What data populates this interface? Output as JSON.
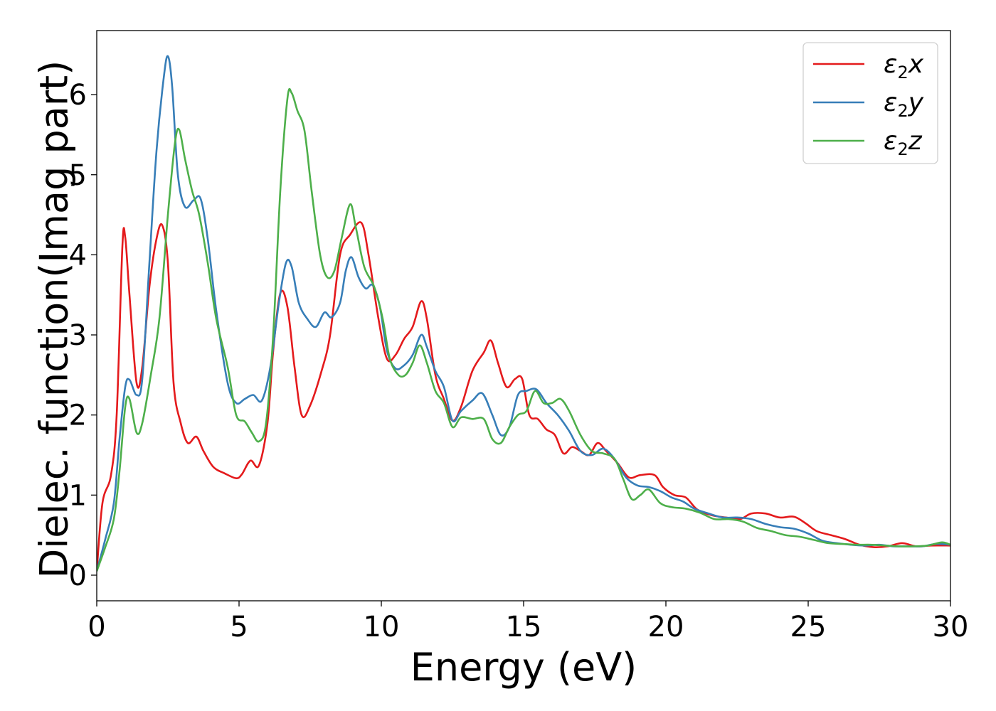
{
  "chart_data": {
    "type": "line",
    "title": "",
    "xlabel": "Energy (eV)",
    "ylabel": "Dielec. function(Imag part)",
    "xlim": [
      0,
      30
    ],
    "ylim": [
      -0.32,
      6.8
    ],
    "xticks": [
      0,
      5,
      10,
      15,
      20,
      25,
      30
    ],
    "xtick_labels": [
      "0",
      "5",
      "10",
      "15",
      "20",
      "25",
      "30"
    ],
    "yticks": [
      0,
      1,
      2,
      3,
      4,
      5,
      6
    ],
    "ytick_labels": [
      "0",
      "1",
      "2",
      "3",
      "4",
      "5",
      "6"
    ],
    "grid": false,
    "legend_position": "top-right",
    "series": [
      {
        "name": "ε₂x",
        "legend_base": "ε",
        "legend_sub": "2",
        "legend_suffix": "x",
        "color": "#e41a1c",
        "points": [
          [
            0,
            0.05
          ],
          [
            0.2,
            0.9
          ],
          [
            0.5,
            1.25
          ],
          [
            0.7,
            2.0
          ],
          [
            0.9,
            4.1
          ],
          [
            1.0,
            4.22
          ],
          [
            1.15,
            3.5
          ],
          [
            1.4,
            2.4
          ],
          [
            1.6,
            2.6
          ],
          [
            1.85,
            3.6
          ],
          [
            2.1,
            4.2
          ],
          [
            2.3,
            4.37
          ],
          [
            2.5,
            3.9
          ],
          [
            2.7,
            2.4
          ],
          [
            2.95,
            1.9
          ],
          [
            3.2,
            1.65
          ],
          [
            3.5,
            1.73
          ],
          [
            3.75,
            1.55
          ],
          [
            4.1,
            1.35
          ],
          [
            4.5,
            1.27
          ],
          [
            4.9,
            1.21
          ],
          [
            5.1,
            1.26
          ],
          [
            5.4,
            1.43
          ],
          [
            5.7,
            1.37
          ],
          [
            6.0,
            1.9
          ],
          [
            6.2,
            2.8
          ],
          [
            6.45,
            3.52
          ],
          [
            6.7,
            3.35
          ],
          [
            6.95,
            2.6
          ],
          [
            7.2,
            2.0
          ],
          [
            7.5,
            2.12
          ],
          [
            7.9,
            2.55
          ],
          [
            8.2,
            3.0
          ],
          [
            8.55,
            4.0
          ],
          [
            8.9,
            4.25
          ],
          [
            9.3,
            4.4
          ],
          [
            9.55,
            4.0
          ],
          [
            9.9,
            3.2
          ],
          [
            10.2,
            2.7
          ],
          [
            10.5,
            2.75
          ],
          [
            10.8,
            2.95
          ],
          [
            11.1,
            3.1
          ],
          [
            11.4,
            3.42
          ],
          [
            11.6,
            3.2
          ],
          [
            11.9,
            2.5
          ],
          [
            12.2,
            2.2
          ],
          [
            12.5,
            1.93
          ],
          [
            12.8,
            2.1
          ],
          [
            13.2,
            2.55
          ],
          [
            13.6,
            2.78
          ],
          [
            13.85,
            2.93
          ],
          [
            14.1,
            2.65
          ],
          [
            14.4,
            2.35
          ],
          [
            14.7,
            2.45
          ],
          [
            14.95,
            2.45
          ],
          [
            15.2,
            2.0
          ],
          [
            15.5,
            1.95
          ],
          [
            15.8,
            1.82
          ],
          [
            16.1,
            1.75
          ],
          [
            16.4,
            1.52
          ],
          [
            16.7,
            1.6
          ],
          [
            17.0,
            1.55
          ],
          [
            17.3,
            1.5
          ],
          [
            17.6,
            1.65
          ],
          [
            17.9,
            1.55
          ],
          [
            18.3,
            1.4
          ],
          [
            18.7,
            1.22
          ],
          [
            19.1,
            1.25
          ],
          [
            19.6,
            1.25
          ],
          [
            19.9,
            1.1
          ],
          [
            20.3,
            1.0
          ],
          [
            20.7,
            0.97
          ],
          [
            21.1,
            0.82
          ],
          [
            21.6,
            0.75
          ],
          [
            22.1,
            0.72
          ],
          [
            22.6,
            0.7
          ],
          [
            23.0,
            0.77
          ],
          [
            23.5,
            0.77
          ],
          [
            24.0,
            0.72
          ],
          [
            24.5,
            0.73
          ],
          [
            24.9,
            0.65
          ],
          [
            25.3,
            0.55
          ],
          [
            25.8,
            0.5
          ],
          [
            26.3,
            0.45
          ],
          [
            26.8,
            0.38
          ],
          [
            27.3,
            0.35
          ],
          [
            27.8,
            0.36
          ],
          [
            28.3,
            0.4
          ],
          [
            28.8,
            0.36
          ],
          [
            29.3,
            0.37
          ],
          [
            30,
            0.37
          ]
        ]
      },
      {
        "name": "ε₂y",
        "legend_base": "ε",
        "legend_sub": "2",
        "legend_suffix": "y",
        "color": "#377eb8",
        "points": [
          [
            0,
            0.05
          ],
          [
            0.3,
            0.45
          ],
          [
            0.6,
            0.9
          ],
          [
            0.8,
            1.7
          ],
          [
            1.0,
            2.35
          ],
          [
            1.15,
            2.44
          ],
          [
            1.4,
            2.25
          ],
          [
            1.6,
            2.45
          ],
          [
            1.85,
            3.9
          ],
          [
            2.1,
            5.3
          ],
          [
            2.35,
            6.2
          ],
          [
            2.5,
            6.48
          ],
          [
            2.65,
            6.1
          ],
          [
            2.85,
            5.0
          ],
          [
            3.1,
            4.6
          ],
          [
            3.4,
            4.68
          ],
          [
            3.65,
            4.7
          ],
          [
            3.9,
            4.2
          ],
          [
            4.2,
            3.3
          ],
          [
            4.6,
            2.4
          ],
          [
            4.9,
            2.15
          ],
          [
            5.2,
            2.2
          ],
          [
            5.5,
            2.25
          ],
          [
            5.8,
            2.18
          ],
          [
            6.1,
            2.6
          ],
          [
            6.4,
            3.4
          ],
          [
            6.65,
            3.9
          ],
          [
            6.85,
            3.85
          ],
          [
            7.1,
            3.4
          ],
          [
            7.4,
            3.2
          ],
          [
            7.7,
            3.1
          ],
          [
            8.0,
            3.28
          ],
          [
            8.25,
            3.22
          ],
          [
            8.55,
            3.4
          ],
          [
            8.75,
            3.8
          ],
          [
            8.95,
            3.97
          ],
          [
            9.2,
            3.72
          ],
          [
            9.45,
            3.58
          ],
          [
            9.7,
            3.62
          ],
          [
            9.95,
            3.35
          ],
          [
            10.2,
            2.8
          ],
          [
            10.5,
            2.58
          ],
          [
            10.8,
            2.62
          ],
          [
            11.1,
            2.75
          ],
          [
            11.4,
            3.0
          ],
          [
            11.6,
            2.85
          ],
          [
            11.9,
            2.55
          ],
          [
            12.2,
            2.35
          ],
          [
            12.5,
            1.93
          ],
          [
            12.8,
            2.05
          ],
          [
            13.2,
            2.18
          ],
          [
            13.55,
            2.27
          ],
          [
            13.9,
            2.0
          ],
          [
            14.2,
            1.75
          ],
          [
            14.5,
            1.85
          ],
          [
            14.8,
            2.25
          ],
          [
            15.1,
            2.3
          ],
          [
            15.45,
            2.32
          ],
          [
            15.8,
            2.15
          ],
          [
            16.2,
            2.0
          ],
          [
            16.6,
            1.8
          ],
          [
            17.0,
            1.55
          ],
          [
            17.4,
            1.5
          ],
          [
            17.8,
            1.58
          ],
          [
            18.2,
            1.45
          ],
          [
            18.6,
            1.22
          ],
          [
            19.0,
            1.12
          ],
          [
            19.4,
            1.1
          ],
          [
            19.8,
            1.05
          ],
          [
            20.2,
            0.97
          ],
          [
            20.6,
            0.92
          ],
          [
            21.0,
            0.83
          ],
          [
            21.5,
            0.77
          ],
          [
            22.0,
            0.72
          ],
          [
            22.5,
            0.72
          ],
          [
            23.0,
            0.7
          ],
          [
            23.5,
            0.64
          ],
          [
            24.0,
            0.6
          ],
          [
            24.5,
            0.58
          ],
          [
            25.0,
            0.52
          ],
          [
            25.5,
            0.43
          ],
          [
            26.0,
            0.4
          ],
          [
            26.5,
            0.38
          ],
          [
            27.0,
            0.37
          ],
          [
            27.5,
            0.38
          ],
          [
            28.0,
            0.36
          ],
          [
            28.5,
            0.36
          ],
          [
            29.0,
            0.36
          ],
          [
            29.5,
            0.39
          ],
          [
            30,
            0.38
          ]
        ]
      },
      {
        "name": "ε₂z",
        "legend_base": "ε",
        "legend_sub": "2",
        "legend_suffix": "z",
        "color": "#4daf4a",
        "points": [
          [
            0,
            0.05
          ],
          [
            0.3,
            0.35
          ],
          [
            0.6,
            0.7
          ],
          [
            0.8,
            1.3
          ],
          [
            1.0,
            2.1
          ],
          [
            1.15,
            2.2
          ],
          [
            1.4,
            1.78
          ],
          [
            1.6,
            1.9
          ],
          [
            1.9,
            2.5
          ],
          [
            2.2,
            3.2
          ],
          [
            2.5,
            4.5
          ],
          [
            2.75,
            5.4
          ],
          [
            2.9,
            5.56
          ],
          [
            3.1,
            5.2
          ],
          [
            3.35,
            4.8
          ],
          [
            3.6,
            4.5
          ],
          [
            3.9,
            3.9
          ],
          [
            4.2,
            3.2
          ],
          [
            4.6,
            2.6
          ],
          [
            4.9,
            2.0
          ],
          [
            5.2,
            1.92
          ],
          [
            5.45,
            1.78
          ],
          [
            5.7,
            1.67
          ],
          [
            5.95,
            1.9
          ],
          [
            6.2,
            3.0
          ],
          [
            6.45,
            4.8
          ],
          [
            6.7,
            5.95
          ],
          [
            6.85,
            6.02
          ],
          [
            7.05,
            5.8
          ],
          [
            7.3,
            5.55
          ],
          [
            7.55,
            4.8
          ],
          [
            7.85,
            4.0
          ],
          [
            8.1,
            3.72
          ],
          [
            8.35,
            3.8
          ],
          [
            8.6,
            4.2
          ],
          [
            8.9,
            4.63
          ],
          [
            9.1,
            4.35
          ],
          [
            9.4,
            3.85
          ],
          [
            9.75,
            3.6
          ],
          [
            10.05,
            3.2
          ],
          [
            10.3,
            2.7
          ],
          [
            10.6,
            2.5
          ],
          [
            10.85,
            2.5
          ],
          [
            11.1,
            2.65
          ],
          [
            11.35,
            2.87
          ],
          [
            11.6,
            2.65
          ],
          [
            11.9,
            2.3
          ],
          [
            12.2,
            2.15
          ],
          [
            12.5,
            1.85
          ],
          [
            12.8,
            1.97
          ],
          [
            13.2,
            1.95
          ],
          [
            13.6,
            1.95
          ],
          [
            13.9,
            1.7
          ],
          [
            14.2,
            1.65
          ],
          [
            14.5,
            1.85
          ],
          [
            14.8,
            2.0
          ],
          [
            15.1,
            2.05
          ],
          [
            15.4,
            2.3
          ],
          [
            15.7,
            2.15
          ],
          [
            16.0,
            2.15
          ],
          [
            16.3,
            2.2
          ],
          [
            16.6,
            2.05
          ],
          [
            17.0,
            1.75
          ],
          [
            17.4,
            1.55
          ],
          [
            17.8,
            1.52
          ],
          [
            18.2,
            1.45
          ],
          [
            18.5,
            1.2
          ],
          [
            18.8,
            0.95
          ],
          [
            19.1,
            1.0
          ],
          [
            19.4,
            1.07
          ],
          [
            19.8,
            0.9
          ],
          [
            20.2,
            0.85
          ],
          [
            20.7,
            0.83
          ],
          [
            21.2,
            0.78
          ],
          [
            21.7,
            0.7
          ],
          [
            22.2,
            0.7
          ],
          [
            22.7,
            0.67
          ],
          [
            23.2,
            0.59
          ],
          [
            23.7,
            0.55
          ],
          [
            24.2,
            0.5
          ],
          [
            24.7,
            0.48
          ],
          [
            25.2,
            0.44
          ],
          [
            25.7,
            0.4
          ],
          [
            26.2,
            0.39
          ],
          [
            26.7,
            0.38
          ],
          [
            27.2,
            0.38
          ],
          [
            27.7,
            0.37
          ],
          [
            28.2,
            0.36
          ],
          [
            28.7,
            0.36
          ],
          [
            29.2,
            0.37
          ],
          [
            29.7,
            0.41
          ],
          [
            30,
            0.38
          ]
        ]
      }
    ]
  }
}
